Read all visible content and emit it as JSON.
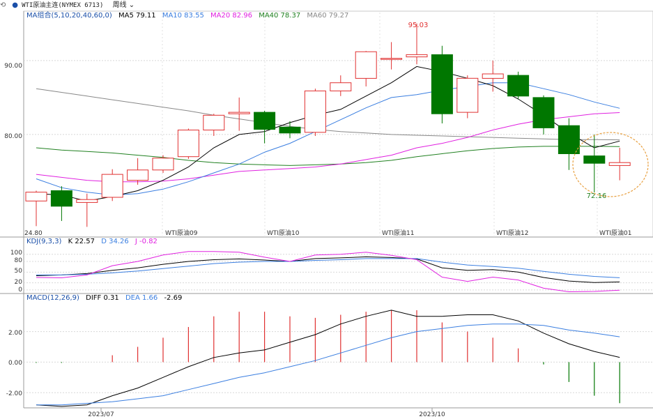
{
  "toolbar": {
    "back_icon": "back-arrow-icon",
    "title": "WTI原油主连(NYMEX 6713)",
    "period": "周线"
  },
  "colors": {
    "up": "#e03030",
    "down": "#007700",
    "ma5": "#000000",
    "ma10": "#3a7ee0",
    "ma20": "#e020e0",
    "ma40": "#208020",
    "ma60": "#888888",
    "k": "#000000",
    "d": "#3a7ee0",
    "j": "#e020e0",
    "diff": "#000000",
    "dea": "#3a7ee0",
    "highlight": "#e8a040"
  },
  "main_panel": {
    "legend": {
      "name": "MA组合(5,10,20,40,60,0)",
      "ma5": "MA5 79.11",
      "ma10": "MA10 83.55",
      "ma20": "MA20 82.96",
      "ma40": "MA40 78.37",
      "ma60": "MA60 79.27"
    },
    "y_ticks": [
      "90.00",
      "80.00"
    ],
    "high_label": "95.03",
    "low_label": "72.16",
    "contract_labels": [
      "WTI原油09",
      "WTI原油10",
      "WTI原油11",
      "WTI原油12",
      "WTI原油01"
    ],
    "corner_label": "24.80"
  },
  "kdj_panel": {
    "legend": {
      "name": "KDJ(9,3,3)",
      "k": "K 22.57",
      "d": "D 34.26",
      "j": "J -0.82"
    },
    "y_ticks": [
      "100",
      "80",
      "50",
      "20",
      "0"
    ]
  },
  "macd_panel": {
    "legend": {
      "name": "MACD(12,26,9)",
      "diff": "DIFF 0.31",
      "dea": "DEA 1.66",
      "macd": "-2.69"
    },
    "y_ticks": [
      "2.00",
      "0.00",
      "-2.00"
    ],
    "x_labels": [
      "2023/07",
      "2023/10"
    ]
  },
  "chart_data": [
    {
      "type": "candlestick",
      "name": "WTI原油主连(NYMEX 6713) 周线",
      "ylim": [
        66.5,
        96.5
      ],
      "ohlc": [
        [
          71.0,
          72.2,
          67.6,
          72.4
        ],
        [
          72.4,
          70.3,
          68.3,
          73.0
        ],
        [
          70.8,
          71.2,
          67.5,
          72.0
        ],
        [
          71.5,
          74.6,
          71.0,
          75.3
        ],
        [
          73.8,
          75.2,
          73.2,
          76.8
        ],
        [
          75.2,
          76.8,
          74.8,
          77.2
        ],
        [
          77.0,
          80.6,
          76.7,
          80.8
        ],
        [
          80.6,
          82.6,
          79.8,
          82.8
        ],
        [
          82.8,
          83.0,
          80.5,
          85.0
        ],
        [
          83.0,
          80.7,
          78.8,
          83.2
        ],
        [
          81.0,
          80.2,
          79.5,
          81.8
        ],
        [
          80.3,
          85.9,
          79.8,
          86.2
        ],
        [
          85.9,
          87.0,
          85.2,
          88.0
        ],
        [
          87.6,
          91.2,
          86.5,
          91.3
        ],
        [
          90.3,
          90.3,
          88.8,
          92.5
        ],
        [
          90.5,
          90.8,
          89.5,
          95.03
        ],
        [
          90.8,
          82.8,
          81.5,
          92.0
        ],
        [
          83.0,
          87.6,
          82.2,
          88.0
        ],
        [
          87.6,
          88.2,
          85.8,
          90.0
        ],
        [
          88.0,
          85.2,
          84.8,
          88.5
        ],
        [
          85.0,
          80.9,
          80.0,
          85.3
        ],
        [
          81.2,
          77.4,
          75.2,
          82.2
        ],
        [
          77.1,
          76.1,
          72.16,
          80.0
        ],
        [
          75.8,
          76.2,
          73.8,
          78.2
        ]
      ],
      "ma5": [
        72.0,
        71.8,
        71.0,
        71.6,
        72.4,
        73.8,
        75.6,
        78.2,
        80.0,
        80.4,
        81.6,
        82.6,
        83.4,
        85.2,
        87.0,
        89.2,
        88.5,
        87.6,
        86.6,
        84.8,
        82.6,
        80.2,
        78.2,
        79.11
      ],
      "ma10": [
        74.0,
        72.8,
        72.2,
        71.8,
        72.0,
        72.6,
        73.6,
        74.8,
        76.0,
        77.6,
        78.8,
        80.4,
        82.0,
        83.6,
        85.0,
        85.4,
        86.0,
        86.5,
        87.0,
        87.0,
        86.2,
        85.4,
        84.4,
        83.55
      ],
      "ma20": [
        74.6,
        74.2,
        73.8,
        73.6,
        73.6,
        73.7,
        74.0,
        74.5,
        75.0,
        75.2,
        75.4,
        75.6,
        76.0,
        76.6,
        77.2,
        78.2,
        78.8,
        79.6,
        80.6,
        81.4,
        82.0,
        82.4,
        82.8,
        82.96
      ],
      "ma40": [
        78.2,
        77.9,
        77.7,
        77.5,
        77.2,
        76.9,
        76.5,
        76.2,
        76.0,
        75.9,
        75.8,
        75.9,
        76.0,
        76.2,
        76.5,
        77.0,
        77.4,
        77.8,
        78.1,
        78.3,
        78.4,
        78.4,
        78.4,
        78.37
      ],
      "ma60": [
        86.2,
        85.7,
        85.2,
        84.7,
        84.2,
        83.7,
        83.2,
        82.6,
        82.1,
        81.6,
        81.1,
        80.7,
        80.4,
        80.2,
        80.0,
        79.9,
        79.8,
        79.7,
        79.6,
        79.5,
        79.4,
        79.3,
        79.3,
        79.27
      ]
    },
    {
      "type": "line",
      "name": "KDJ(9,3,3)",
      "ylim": [
        -8,
        125
      ],
      "series": [
        {
          "name": "K",
          "values": [
            40,
            42,
            46,
            55,
            62,
            72,
            80,
            85,
            87,
            84,
            80,
            88,
            90,
            93,
            91,
            87,
            62,
            55,
            57,
            50,
            35,
            25,
            21,
            22.57
          ]
        },
        {
          "name": "D",
          "values": [
            42,
            42,
            44,
            48,
            53,
            60,
            67,
            74,
            78,
            80,
            80,
            83,
            85,
            88,
            88,
            88,
            78,
            70,
            66,
            61,
            52,
            44,
            38,
            34.26
          ]
        },
        {
          "name": "J",
          "values": [
            35,
            34,
            42,
            68,
            80,
            98,
            108,
            108,
            106,
            92,
            80,
            98,
            100,
            106,
            97,
            85,
            36,
            24,
            36,
            28,
            5,
            -5,
            -4,
            -0.82
          ]
        }
      ]
    },
    {
      "type": "bar+line",
      "name": "MACD(12,26,9)",
      "ylim": [
        -2.95,
        3.9
      ],
      "macd": [
        -0.05,
        -0.05,
        0.0,
        0.45,
        1.0,
        1.6,
        2.3,
        3.0,
        3.3,
        3.3,
        3.0,
        2.9,
        3.1,
        3.3,
        3.4,
        3.4,
        2.6,
        2.0,
        1.6,
        0.9,
        -0.15,
        -1.3,
        -2.2,
        -2.69
      ],
      "series": [
        {
          "name": "DIFF",
          "values": [
            -2.8,
            -2.9,
            -2.8,
            -2.2,
            -1.7,
            -1.0,
            -0.3,
            0.3,
            0.6,
            0.8,
            1.3,
            1.8,
            2.5,
            3.0,
            3.4,
            3.0,
            3.0,
            3.1,
            3.1,
            2.7,
            1.9,
            1.2,
            0.7,
            0.31
          ]
        },
        {
          "name": "DEA",
          "values": [
            -2.8,
            -2.8,
            -2.7,
            -2.6,
            -2.4,
            -2.2,
            -1.8,
            -1.4,
            -1.0,
            -0.7,
            -0.3,
            0.1,
            0.6,
            1.1,
            1.6,
            2.0,
            2.2,
            2.4,
            2.5,
            2.5,
            2.4,
            2.1,
            1.9,
            1.66
          ]
        }
      ]
    }
  ]
}
